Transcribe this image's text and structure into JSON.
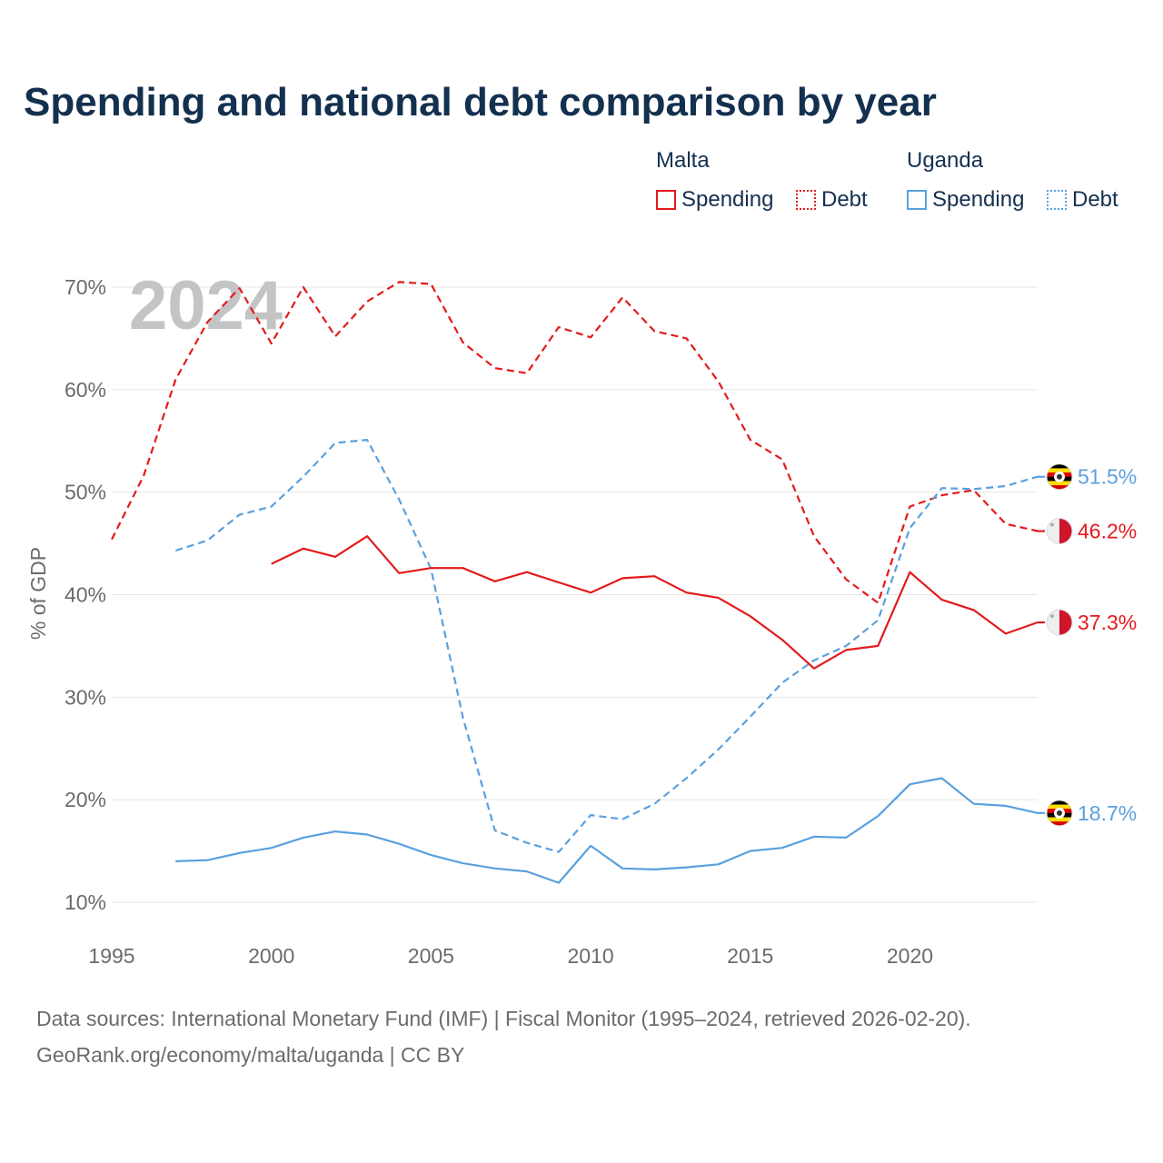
{
  "chart_data": {
    "type": "line",
    "title": "Spending and national debt comparison by year",
    "year_label": "2024",
    "ylabel": "% of GDP",
    "xlabel": "",
    "xlim": [
      1995,
      2024
    ],
    "ylim": [
      10,
      70
    ],
    "yticks": [
      10,
      20,
      30,
      40,
      50,
      60,
      70
    ],
    "ytick_labels": [
      "10%",
      "20%",
      "30%",
      "40%",
      "50%",
      "60%",
      "70%"
    ],
    "xticks": [
      1995,
      2000,
      2005,
      2010,
      2015,
      2020
    ],
    "xtick_labels": [
      "1995",
      "2000",
      "2005",
      "2010",
      "2015",
      "2020"
    ],
    "legend": {
      "groups": [
        {
          "name": "Malta",
          "items": [
            "Spending",
            "Debt"
          ]
        },
        {
          "name": "Uganda",
          "items": [
            "Spending",
            "Debt"
          ]
        }
      ]
    },
    "colors": {
      "malta": "#e31a1c",
      "uganda": "#5aa0de"
    },
    "series": [
      {
        "id": "malta-debt",
        "country": "Malta",
        "measure": "Debt",
        "color": "#e31a1c",
        "dashed": true,
        "x": [
          1995,
          1996,
          1997,
          1998,
          1999,
          2000,
          2001,
          2002,
          2003,
          2004,
          2005,
          2006,
          2007,
          2008,
          2009,
          2010,
          2011,
          2012,
          2013,
          2014,
          2015,
          2016,
          2017,
          2018,
          2019,
          2020,
          2021,
          2022,
          2023,
          2024
        ],
        "values": [
          45.4,
          51.6,
          61.0,
          66.6,
          69.9,
          64.5,
          70.0,
          65.2,
          68.6,
          70.5,
          70.3,
          64.6,
          62.1,
          61.6,
          66.1,
          65.1,
          69.0,
          65.7,
          65.0,
          60.8,
          55.1,
          53.2,
          45.7,
          41.5,
          39.2,
          48.6,
          49.7,
          50.2,
          46.9,
          46.2
        ],
        "end_label": "46.2%",
        "flag": "malta"
      },
      {
        "id": "uganda-debt",
        "country": "Uganda",
        "measure": "Debt",
        "color": "#5aa0de",
        "dashed": true,
        "x": [
          1997,
          1998,
          1999,
          2000,
          2001,
          2002,
          2003,
          2004,
          2005,
          2006,
          2007,
          2008,
          2009,
          2010,
          2011,
          2012,
          2013,
          2014,
          2015,
          2016,
          2017,
          2018,
          2019,
          2020,
          2021,
          2022,
          2023,
          2024
        ],
        "values": [
          44.3,
          45.3,
          47.8,
          48.6,
          51.5,
          54.8,
          55.1,
          49.3,
          42.5,
          28.0,
          17.0,
          15.8,
          14.9,
          18.5,
          18.1,
          19.6,
          22.1,
          24.9,
          28.1,
          31.4,
          33.6,
          35.0,
          37.5,
          46.5,
          50.4,
          50.3,
          50.6,
          51.5
        ],
        "end_label": "51.5%",
        "flag": "uganda"
      },
      {
        "id": "malta-spending",
        "country": "Malta",
        "measure": "Spending",
        "color": "#e31a1c",
        "dashed": false,
        "x": [
          2000,
          2001,
          2002,
          2003,
          2004,
          2005,
          2006,
          2007,
          2008,
          2009,
          2010,
          2011,
          2012,
          2013,
          2014,
          2015,
          2016,
          2017,
          2018,
          2019,
          2020,
          2021,
          2022,
          2023,
          2024
        ],
        "values": [
          43.0,
          44.5,
          43.7,
          45.7,
          42.1,
          42.6,
          42.6,
          41.3,
          42.2,
          41.2,
          40.2,
          41.6,
          41.8,
          40.2,
          39.7,
          37.9,
          35.6,
          32.8,
          34.6,
          35.0,
          42.2,
          39.5,
          38.5,
          36.2,
          37.3
        ],
        "end_label": "37.3%",
        "flag": "malta"
      },
      {
        "id": "uganda-spending",
        "country": "Uganda",
        "measure": "Spending",
        "color": "#5aa0de",
        "dashed": false,
        "x": [
          1997,
          1998,
          1999,
          2000,
          2001,
          2002,
          2003,
          2004,
          2005,
          2006,
          2007,
          2008,
          2009,
          2010,
          2011,
          2012,
          2013,
          2014,
          2015,
          2016,
          2017,
          2018,
          2019,
          2020,
          2021,
          2022,
          2023,
          2024
        ],
        "values": [
          14.0,
          14.1,
          14.8,
          15.3,
          16.3,
          16.9,
          16.6,
          15.7,
          14.6,
          13.8,
          13.3,
          13.0,
          11.9,
          15.5,
          13.3,
          13.2,
          13.4,
          13.7,
          15.0,
          15.3,
          16.4,
          16.3,
          18.4,
          21.5,
          22.1,
          19.6,
          19.4,
          18.7
        ],
        "end_label": "18.7%",
        "flag": "uganda"
      }
    ]
  },
  "footer": {
    "line1": "Data sources: International Monetary Fund (IMF) | Fiscal Monitor (1995–2024, retrieved 2026-02-20).",
    "line2": "GeoRank.org/economy/malta/uganda | CC BY"
  }
}
